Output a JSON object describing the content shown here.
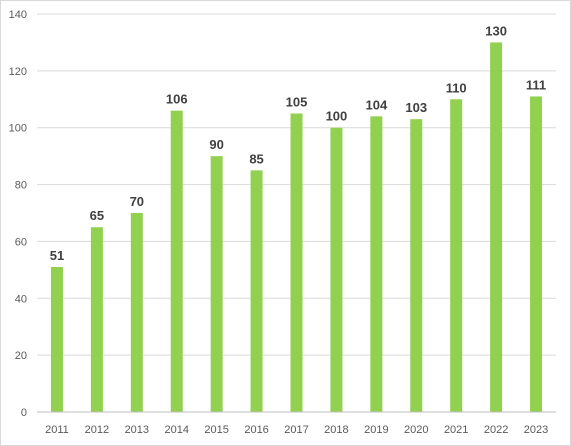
{
  "chart_data": {
    "type": "bar",
    "title": "",
    "xlabel": "",
    "ylabel": "",
    "categories": [
      "2011",
      "2012",
      "2013",
      "2014",
      "2015",
      "2016",
      "2017",
      "2018",
      "2019",
      "2020",
      "2021",
      "2022",
      "2023"
    ],
    "series": [
      {
        "values": [
          51,
          65,
          70,
          106,
          90,
          85,
          105,
          100,
          104,
          103,
          110,
          130,
          111
        ]
      }
    ],
    "ylim": [
      0,
      140
    ],
    "yticks": [
      0,
      20,
      40,
      60,
      80,
      100,
      120,
      140
    ],
    "grid": true,
    "legend": "none",
    "data_labels": true,
    "colors": {
      "bar": "#92D050",
      "grid": "#d9d9d9",
      "axis": "#bfbfbf",
      "frame": "#d9d9d9"
    }
  }
}
